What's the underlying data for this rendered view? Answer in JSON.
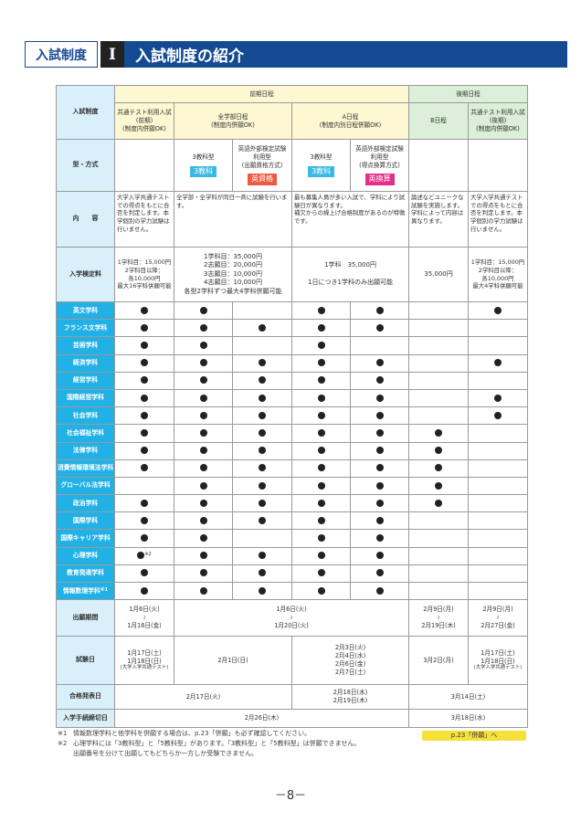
{
  "header": {
    "category": "入試制度",
    "roman": "I",
    "title": "入試制度の紹介"
  },
  "table": {
    "row_label_system": "入試制度",
    "group_early": "前期日程",
    "group_late": "後期日程",
    "systems": [
      "共通テスト利用入試\n(前期)\n(制度内併願OK)",
      "全学部日程\n(制度内併願OK)",
      "A日程\n(制度内別日程併願OK)",
      "B日程",
      "共通テスト利用入試\n(後期)\n(制度内併願OK)"
    ],
    "row_label_type": "型・方式",
    "types": [
      "3教科型",
      "英語外部検定試験\n利用型\n(出願資格方式)",
      "3教科型",
      "英語外部検定試験\n利用型\n(得点換算方式)"
    ],
    "badges": [
      {
        "text": "3教科",
        "color": "#3cb8e6"
      },
      {
        "text": "英資格",
        "color": "#ec5b3f"
      },
      {
        "text": "3教科",
        "color": "#3cb8e6"
      },
      {
        "text": "英換算",
        "color": "#e52f8a"
      }
    ],
    "row_label_content": "内　　容",
    "contents": [
      "大学入学共通テストでの得点をもとに合否を判定します。本学個別の学力試験は行いません。",
      "全学部・全学科が同日一斉に試験を行います。",
      "最も募集人員が多い入試で、学科により試験日が異なります。\n補欠からの繰上げ合格制度があるのが特徴です。",
      "論述などユニークな試験を実施します。学科によって内容は異なります。",
      "大学入学共通テストでの得点をもとに合否を判定します。本学個別の学力試験は行いません。"
    ],
    "row_label_fee": "入学検定料",
    "fees": [
      "1学科目：15,000円\n2学科目以降：\n各10,000円\n最大16学科併願可能",
      "1学科目：35,000円\n2志願目：20,000円\n3志願目：10,000円\n4志願目：10,000円\n各型2学科ずつ最大4学科併願可能",
      "1学科　35,000円\n\n1日につき1学科のみ出願可能",
      "35,000円",
      "1学科目：15,000円\n2学科目以降：\n各10,000円\n最大4学科併願可能"
    ],
    "departments": [
      {
        "name": "英文学科",
        "marks": [
          1,
          1,
          0,
          1,
          1,
          0,
          1
        ]
      },
      {
        "name": "フランス文学科",
        "marks": [
          1,
          1,
          1,
          1,
          1,
          0,
          0
        ]
      },
      {
        "name": "芸術学科",
        "marks": [
          1,
          1,
          0,
          1,
          0,
          0,
          0
        ]
      },
      {
        "name": "経済学科",
        "marks": [
          1,
          1,
          1,
          1,
          1,
          0,
          1
        ]
      },
      {
        "name": "経営学科",
        "marks": [
          1,
          1,
          1,
          1,
          1,
          0,
          0
        ]
      },
      {
        "name": "国際経営学科",
        "marks": [
          1,
          1,
          1,
          1,
          1,
          0,
          1
        ]
      },
      {
        "name": "社会学科",
        "marks": [
          1,
          1,
          1,
          1,
          1,
          0,
          1
        ]
      },
      {
        "name": "社会福祉学科",
        "marks": [
          1,
          1,
          1,
          1,
          1,
          1,
          0
        ]
      },
      {
        "name": "法律学科",
        "marks": [
          1,
          1,
          1,
          1,
          1,
          1,
          0
        ]
      },
      {
        "name": "消費情報環境法学科",
        "marks": [
          1,
          1,
          1,
          1,
          1,
          1,
          0
        ]
      },
      {
        "name": "グローバル法学科",
        "marks": [
          0,
          1,
          1,
          1,
          1,
          1,
          0
        ]
      },
      {
        "name": "政治学科",
        "marks": [
          1,
          1,
          1,
          1,
          1,
          1,
          0
        ]
      },
      {
        "name": "国際学科",
        "marks": [
          1,
          1,
          1,
          1,
          1,
          0,
          0
        ]
      },
      {
        "name": "国際キャリア学科",
        "marks": [
          1,
          1,
          0,
          1,
          1,
          0,
          0
        ]
      },
      {
        "name": "心理学科",
        "marks": [
          1,
          1,
          1,
          1,
          1,
          0,
          0
        ],
        "note": "※2"
      },
      {
        "name": "教育発達学科",
        "marks": [
          1,
          1,
          1,
          1,
          1,
          0,
          0
        ]
      },
      {
        "name": "情報数理学科",
        "marks": [
          1,
          1,
          1,
          1,
          1,
          0,
          0
        ],
        "note": "※1"
      }
    ],
    "row_label_period": "出願期間",
    "periods": [
      "1月6日(火)\n≀\n1月16日(金)",
      "1月6日(火)\n≀\n1月20日(火)",
      "2月9日(月)\n≀\n2月19日(木)",
      "2月9日(月)\n≀\n2月27日(金)"
    ],
    "row_label_exam": "試験日",
    "exams": [
      "1月17日(土)\n1月18日(日)",
      "2月1日(日)",
      "2月3日(火)\n2月4日(水)\n2月6日(金)\n2月7日(土)",
      "3月2日(月)",
      "1月17日(土)\n1月18日(日)"
    ],
    "exam_sub": "(大学入学共通テスト)",
    "row_label_result": "合格発表日",
    "results": [
      "2月17日(火)",
      "2月18日(水)\n2月19日(木)",
      "3月14日(土)"
    ],
    "row_label_deadline": "入学手続締切日",
    "deadlines": [
      "2月26日(木)",
      "3月18日(水)"
    ]
  },
  "notes": [
    {
      "mark": "※1",
      "text": "情報数理学科と他学科を併願する場合は、p.23「併願」も必ず確認してください。"
    },
    {
      "mark": "※2",
      "text": "心理学科には「3教科型」と「5教科型」があります。「3教科型」と「5教科型」は併願できません。"
    },
    {
      "mark": "",
      "text": "出願番号を分けて出願してもどちらか一方しか受験できません。"
    }
  ],
  "link_label": "p.23「併願」へ",
  "page_number": "－8－"
}
